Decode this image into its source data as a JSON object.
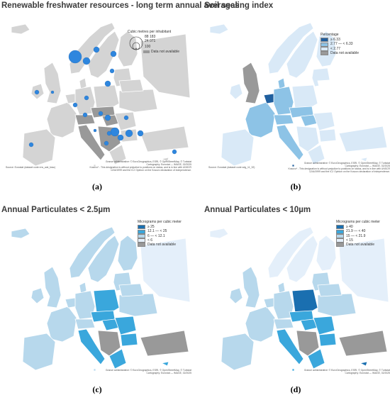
{
  "panels": {
    "a": {
      "title": "Renewable freshwater resources - long term annual averages",
      "caption": "(a)",
      "legend_title": "Cubic metres per inhabitant",
      "bubble_values": [
        "88 183",
        "24 071",
        "100"
      ],
      "na_label": "Data not available",
      "source": "Source: Eurostat (dataset code env_wat_fwsc)",
      "note1": "Grance administrative: © EuroGeographics, ESRI, © OpenStreetMap, © Turkstat",
      "note2": "Cartography: Eurostat — IMAGE, 02/2025",
      "note3": "Kosovo* - This designation is without prejudice to positions on status, and is in line with UNSCR 1244/1999 and the ICJ Opinion on the Kosovo declaration of independence."
    },
    "b": {
      "title": "Soil sealing index",
      "caption": "(b)",
      "legend_title": "Percentage",
      "legend_items": [
        "≥ 6.33",
        "2.77 — < 6.33",
        "< 2.77"
      ],
      "na_label": "Data not available",
      "source": "Source: Eurostat (dataset code sdg_11_32)",
      "note1": "Grance administrative: © EuroGeographics, ESRI, © OpenStreetMap, © Turkstat",
      "note2": "Cartography: Eurostat — IMAGE, 02/2025",
      "note3": "Kosovo* - This designation is without prejudice to positions on status, and is in line with UNSCR 1244/1999 and the ICJ Opinion on the Kosovo declaration of independence."
    },
    "c": {
      "title": "Annual Particulates < 2.5µm",
      "caption": "(c)",
      "legend_title": "Micrograms per cubic meter",
      "legend_items": [
        "≥ 25",
        "12.1 — < 25",
        "6 — < 12.1",
        "< 6"
      ],
      "na_label": "Data not available",
      "note1": "Grance administrative: © EuroGeographics, ESRI, © OpenStreetMap, © Turkstat",
      "note2": "Cartography: Eurostat — IMAGE, 02/2025"
    },
    "d": {
      "title": "Annual Particulates < 10µm",
      "caption": "(d)",
      "legend_title": "Micrograms per cubic meter",
      "legend_items": [
        "≥ 40",
        "21.9 — < 40",
        "15 — < 21.9",
        "< 15"
      ],
      "na_label": "Data not available",
      "note1": "Grance administrative: © EuroGeographics, ESRI, © OpenStreetMap, © Turkstat",
      "note2": "Cartography: Eurostat — IMAGE, 02/2025"
    }
  },
  "colors": {
    "land_grey": "#d4d4d4",
    "no_data": "#999999",
    "border": "#ffffff",
    "bubble": "#2e86de",
    "b_high": "#1f5f9e",
    "b_mid": "#8dc3e6",
    "b_low": "#d9e9f7",
    "pm_high": "#1a6fb0",
    "pm_midhigh": "#3aa7dc",
    "pm_mid": "#b7d8ec",
    "pm_low": "#e4effa"
  }
}
